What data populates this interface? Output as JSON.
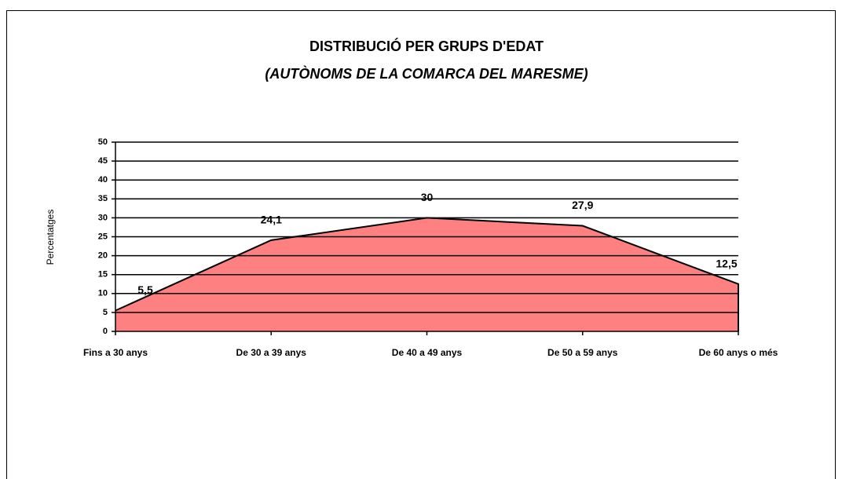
{
  "chart_data": {
    "type": "area",
    "title": "DISTRIBUCIÓ PER GRUPS D'EDAT",
    "subtitle": "(AUTÒNOMS DE LA COMARCA DEL MARESME)",
    "y_label": "Percentatges",
    "categories": [
      "Fins a 30 anys",
      "De 30 a 39 anys",
      "De 40 a 49 anys",
      "De 50 a 59 anys",
      "De 60 anys o més"
    ],
    "values": [
      5.5,
      24.1,
      30,
      27.9,
      12.5
    ],
    "value_labels": [
      "5,5",
      "24,1",
      "30",
      "27,9",
      "12,5"
    ],
    "color": "#ff8080",
    "ylim": [
      0,
      50
    ],
    "yticks": [
      0,
      5,
      10,
      15,
      20,
      25,
      30,
      35,
      40,
      45,
      50
    ],
    "grid": true
  }
}
